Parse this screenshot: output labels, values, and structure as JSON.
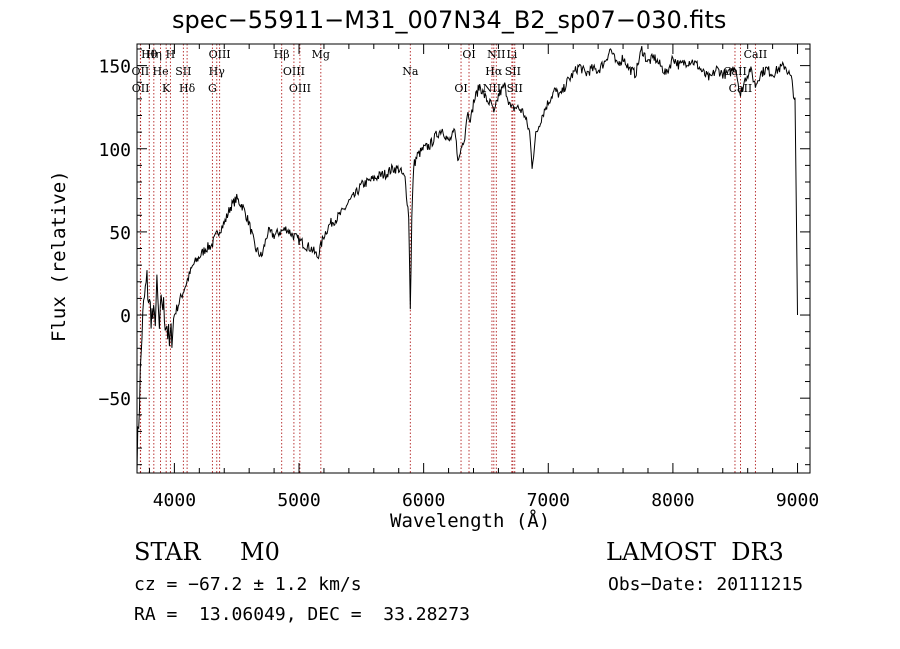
{
  "chart_data": {
    "type": "line",
    "title": "spec−55911−M31_007N34_B2_sp07−030.fits",
    "xlabel": "Wavelength (Å)",
    "ylabel": "Flux (relative)",
    "xlim": [
      3700,
      9100
    ],
    "ylim": [
      -95,
      163
    ],
    "xticks": [
      4000,
      5000,
      6000,
      7000,
      8000,
      9000
    ],
    "xtick_labels": [
      "4000",
      "5000",
      "6000",
      "7000",
      "8000",
      "9000"
    ],
    "yticks": [
      -50,
      0,
      50,
      100,
      150
    ],
    "ytick_labels": [
      "−50",
      "0",
      "50",
      "100",
      "150"
    ],
    "series": [
      {
        "name": "flux",
        "x": [
          3700,
          3720,
          3740,
          3760,
          3780,
          3800,
          3820,
          3840,
          3860,
          3880,
          3900,
          3920,
          3940,
          3960,
          3980,
          4000,
          4050,
          4100,
          4150,
          4200,
          4250,
          4300,
          4350,
          4400,
          4450,
          4500,
          4550,
          4600,
          4650,
          4700,
          4750,
          4800,
          4850,
          4900,
          4950,
          5000,
          5050,
          5100,
          5150,
          5200,
          5250,
          5300,
          5350,
          5400,
          5450,
          5500,
          5550,
          5600,
          5650,
          5700,
          5750,
          5800,
          5850,
          5880,
          5893,
          5905,
          5920,
          5950,
          6000,
          6050,
          6100,
          6150,
          6200,
          6250,
          6280,
          6300,
          6330,
          6350,
          6380,
          6400,
          6450,
          6500,
          6550,
          6563,
          6600,
          6650,
          6700,
          6750,
          6800,
          6850,
          6870,
          6900,
          6950,
          7000,
          7050,
          7100,
          7150,
          7200,
          7250,
          7300,
          7350,
          7400,
          7450,
          7500,
          7550,
          7600,
          7650,
          7700,
          7750,
          7800,
          7850,
          7900,
          7950,
          8000,
          8050,
          8100,
          8150,
          8200,
          8250,
          8300,
          8350,
          8400,
          8450,
          8500,
          8542,
          8580,
          8620,
          8662,
          8700,
          8750,
          8800,
          8850,
          8900,
          8950,
          8980,
          9000
        ],
        "y": [
          -90,
          -50,
          -10,
          10,
          20,
          5,
          0,
          -5,
          15,
          -10,
          10,
          0,
          -5,
          -20,
          -10,
          0,
          10,
          20,
          30,
          35,
          40,
          42,
          50,
          55,
          65,
          70,
          65,
          55,
          40,
          35,
          50,
          48,
          50,
          52,
          48,
          45,
          42,
          40,
          35,
          48,
          55,
          58,
          62,
          68,
          72,
          78,
          80,
          82,
          84,
          85,
          88,
          88,
          82,
          60,
          5,
          58,
          90,
          96,
          100,
          102,
          108,
          112,
          104,
          110,
          92,
          100,
          108,
          122,
          118,
          128,
          138,
          130,
          126,
          120,
          132,
          138,
          124,
          125,
          122,
          110,
          90,
          108,
          120,
          128,
          135,
          132,
          140,
          145,
          150,
          145,
          148,
          147,
          152,
          160,
          150,
          155,
          148,
          145,
          160,
          152,
          155,
          150,
          145,
          155,
          150,
          152,
          153,
          150,
          145,
          142,
          148,
          145,
          145,
          150,
          132,
          142,
          148,
          138,
          145,
          148,
          145,
          148,
          150,
          142,
          128,
          0
        ]
      }
    ],
    "line_markers": [
      {
        "label": "Hθ",
        "wavelength": 3798
      },
      {
        "label": "OII",
        "wavelength": 3727
      },
      {
        "label": "OII",
        "wavelength": 3729
      },
      {
        "label": "Hη",
        "wavelength": 3835
      },
      {
        "label": "He",
        "wavelength": 3889
      },
      {
        "label": "K",
        "wavelength": 3934
      },
      {
        "label": "H",
        "wavelength": 3968
      },
      {
        "label": "SII",
        "wavelength": 4072
      },
      {
        "label": "Hδ",
        "wavelength": 4102
      },
      {
        "label": "OIII",
        "wavelength": 4363
      },
      {
        "label": "Hγ",
        "wavelength": 4340
      },
      {
        "label": "G",
        "wavelength": 4305
      },
      {
        "label": "Hβ",
        "wavelength": 4861
      },
      {
        "label": "OIII",
        "wavelength": 4959
      },
      {
        "label": "OIII",
        "wavelength": 5007
      },
      {
        "label": "Mg",
        "wavelength": 5175
      },
      {
        "label": "Na",
        "wavelength": 5893
      },
      {
        "label": "OI",
        "wavelength": 6300
      },
      {
        "label": "OI",
        "wavelength": 6364
      },
      {
        "label": "Hα",
        "wavelength": 6563
      },
      {
        "label": "NII",
        "wavelength": 6548
      },
      {
        "label": "NII",
        "wavelength": 6583
      },
      {
        "label": "SII",
        "wavelength": 6716
      },
      {
        "label": "SII",
        "wavelength": 6731
      },
      {
        "label": "Li",
        "wavelength": 6708
      },
      {
        "label": "CaII",
        "wavelength": 8498
      },
      {
        "label": "CaII",
        "wavelength": 8542
      },
      {
        "label": "CaII",
        "wavelength": 8662
      }
    ],
    "colors": {
      "spectrum": "#000000",
      "markers": "#b22222",
      "axes": "#000000"
    }
  },
  "info": {
    "class_label": "STAR",
    "subclass": "M0",
    "survey": "LAMOST  DR3",
    "redshift_text": "cz = −67.2 ± 1.2 km/s",
    "obs_date_text": "Obs−Date: 20111215",
    "coords_text": "RA =  13.06049, DEC =  33.28273"
  }
}
